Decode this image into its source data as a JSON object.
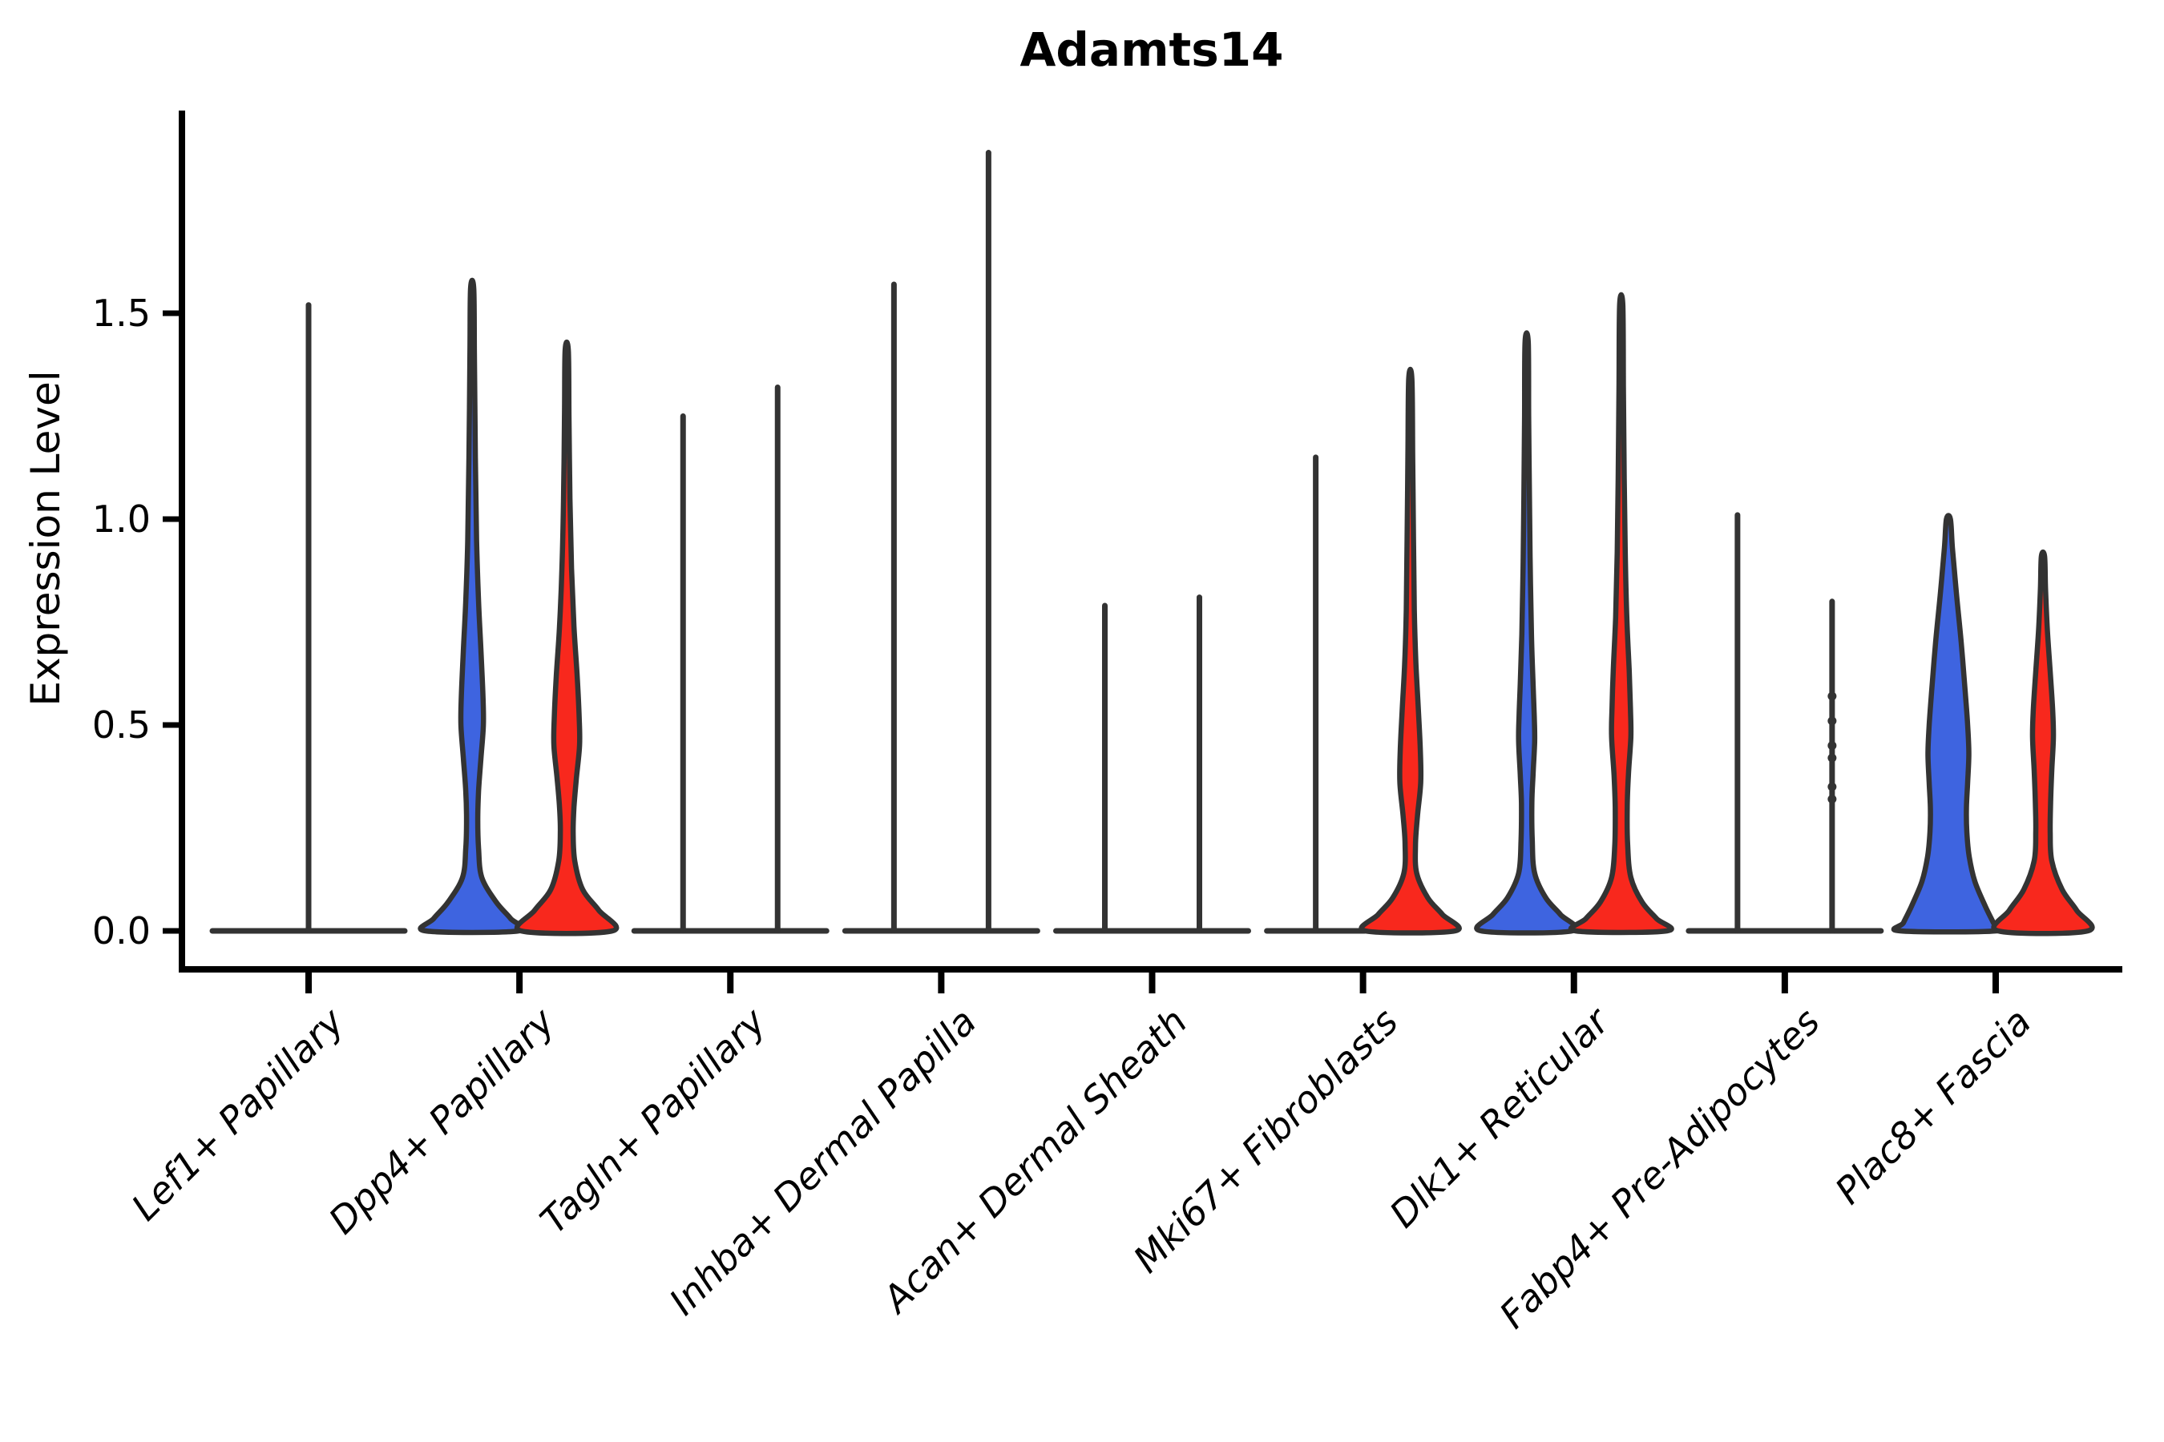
{
  "title": "Adamts14",
  "axes": {
    "ylabel": "Expression Level",
    "ytick_labels": [
      "0.0",
      "0.5",
      "1.0",
      "1.5"
    ],
    "ytick_values": [
      0.0,
      0.5,
      1.0,
      1.5
    ]
  },
  "colors": {
    "blue": "#3E64E0",
    "red": "#F8281D",
    "outline": "#333333",
    "axis": "#000000",
    "background": "#ffffff"
  },
  "chart_data": {
    "type": "violin",
    "title": "Adamts14",
    "xlabel": "",
    "ylabel": "Expression Level",
    "ylim": [
      -0.09,
      1.99
    ],
    "yticks": [
      0.0,
      0.5,
      1.0,
      1.5
    ],
    "grid": false,
    "legend": "none",
    "series": [
      "blue",
      "red"
    ],
    "categories": [
      "Lef1+ Papillary",
      "Dpp4+ Papillary",
      "Tagln+ Papillary",
      "Inhba+ Dermal Papilla",
      "Acan+ Dermal Sheath",
      "Mki67+ Fibroblasts",
      "Dlk1+ Reticular",
      "Fabp4+ Pre-Adipocytes",
      "Plac8+ Fascia"
    ],
    "groups": [
      {
        "label": "Lef1+ Papillary",
        "left": {
          "shape": "flat",
          "max": 0.0
        },
        "right": {
          "shape": "flat",
          "max": 0.0
        },
        "center_spike": 1.52
      },
      {
        "label": "Dpp4+ Papillary",
        "left": {
          "shape": "body",
          "max": 1.56,
          "profile": [
            [
              1.56,
              2
            ],
            [
              1.4,
              2.8
            ],
            [
              1.15,
              4
            ],
            [
              0.95,
              5.5
            ],
            [
              0.8,
              8
            ],
            [
              0.68,
              11
            ],
            [
              0.57,
              13.5
            ],
            [
              0.5,
              14
            ],
            [
              0.42,
              11
            ],
            [
              0.34,
              8
            ],
            [
              0.27,
              7
            ],
            [
              0.2,
              8
            ],
            [
              0.13,
              12
            ],
            [
              0.07,
              30
            ],
            [
              0.03,
              48
            ],
            [
              0,
              58
            ]
          ]
        },
        "right": {
          "shape": "body",
          "max": 1.41,
          "profile": [
            [
              1.41,
              2
            ],
            [
              1.25,
              2.8
            ],
            [
              1.05,
              4
            ],
            [
              0.88,
              6
            ],
            [
              0.74,
              9
            ],
            [
              0.62,
              13
            ],
            [
              0.52,
              15.5
            ],
            [
              0.45,
              16
            ],
            [
              0.37,
              12
            ],
            [
              0.3,
              9
            ],
            [
              0.24,
              8
            ],
            [
              0.17,
              10
            ],
            [
              0.1,
              20
            ],
            [
              0.05,
              40
            ],
            [
              0,
              57
            ]
          ]
        },
        "center_spike": null
      },
      {
        "label": "Tagln+ Papillary",
        "left": {
          "shape": "spike",
          "max": 1.25
        },
        "right": {
          "shape": "spike",
          "max": 1.32
        },
        "center_spike": null
      },
      {
        "label": "Inhba+ Dermal Papilla",
        "left": {
          "shape": "spike",
          "max": 1.57
        },
        "right": {
          "shape": "spike",
          "max": 1.89
        },
        "center_spike": null
      },
      {
        "label": "Acan+ Dermal Sheath",
        "left": {
          "shape": "spike",
          "max": 0.79
        },
        "right": {
          "shape": "spike",
          "max": 0.81
        },
        "center_spike": null
      },
      {
        "label": "Mki67+ Fibroblasts",
        "left": {
          "shape": "spike",
          "max": 1.15
        },
        "right": {
          "shape": "body",
          "max": 1.34,
          "profile": [
            [
              1.34,
              2
            ],
            [
              1.15,
              3
            ],
            [
              0.95,
              4
            ],
            [
              0.78,
              5
            ],
            [
              0.65,
              7
            ],
            [
              0.54,
              10
            ],
            [
              0.44,
              12.5
            ],
            [
              0.36,
              13
            ],
            [
              0.28,
              9
            ],
            [
              0.21,
              6.5
            ],
            [
              0.14,
              8
            ],
            [
              0.08,
              22
            ],
            [
              0.04,
              40
            ],
            [
              0,
              56
            ]
          ]
        },
        "center_spike": null
      },
      {
        "label": "Dlk1+ Reticular",
        "left": {
          "shape": "body",
          "max": 1.43,
          "profile": [
            [
              1.43,
              2
            ],
            [
              1.25,
              2.6
            ],
            [
              1.05,
              3.5
            ],
            [
              0.88,
              4.5
            ],
            [
              0.72,
              6
            ],
            [
              0.6,
              8
            ],
            [
              0.52,
              9.5
            ],
            [
              0.46,
              10
            ],
            [
              0.38,
              8
            ],
            [
              0.31,
              6.5
            ],
            [
              0.22,
              7
            ],
            [
              0.14,
              10
            ],
            [
              0.08,
              24
            ],
            [
              0.04,
              42
            ],
            [
              0,
              57
            ]
          ]
        },
        "right": {
          "shape": "body",
          "max": 1.52,
          "profile": [
            [
              1.52,
              2
            ],
            [
              1.32,
              2.8
            ],
            [
              1.1,
              3.8
            ],
            [
              0.92,
              5
            ],
            [
              0.76,
              7
            ],
            [
              0.63,
              10
            ],
            [
              0.54,
              11.5
            ],
            [
              0.47,
              12
            ],
            [
              0.38,
              9
            ],
            [
              0.3,
              7.5
            ],
            [
              0.21,
              8
            ],
            [
              0.13,
              12
            ],
            [
              0.07,
              26
            ],
            [
              0.03,
              44
            ],
            [
              0,
              57
            ]
          ]
        },
        "center_spike": null
      },
      {
        "label": "Fabp4+ Pre-Adipocytes",
        "left": {
          "shape": "spike",
          "max": 1.01
        },
        "right": {
          "shape": "spike",
          "max": 0.8,
          "dots": [
            0.57,
            0.51,
            0.45,
            0.42,
            0.35,
            0.32
          ]
        },
        "center_spike": null
      },
      {
        "label": "Plac8+ Fascia",
        "left": {
          "shape": "body",
          "max": 1.0,
          "profile": [
            [
              1.0,
              2.5
            ],
            [
              0.93,
              5
            ],
            [
              0.82,
              10
            ],
            [
              0.7,
              16
            ],
            [
              0.58,
              21
            ],
            [
              0.5,
              24
            ],
            [
              0.43,
              25.5
            ],
            [
              0.36,
              24
            ],
            [
              0.3,
              22.5
            ],
            [
              0.24,
              23
            ],
            [
              0.18,
              26
            ],
            [
              0.12,
              33
            ],
            [
              0.06,
              46
            ],
            [
              0.02,
              56
            ],
            [
              0,
              60
            ]
          ]
        },
        "right": {
          "shape": "body",
          "max": 0.91,
          "profile": [
            [
              0.91,
              2
            ],
            [
              0.83,
              3.2
            ],
            [
              0.73,
              5.5
            ],
            [
              0.63,
              9
            ],
            [
              0.54,
              12
            ],
            [
              0.47,
              13
            ],
            [
              0.39,
              11
            ],
            [
              0.31,
              9.5
            ],
            [
              0.24,
              9
            ],
            [
              0.17,
              11
            ],
            [
              0.1,
              24
            ],
            [
              0.05,
              42
            ],
            [
              0,
              56
            ]
          ]
        },
        "center_spike": null
      }
    ]
  }
}
